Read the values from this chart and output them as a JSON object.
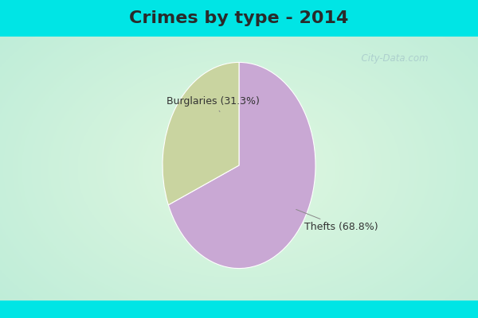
{
  "title": "Crimes by type - 2014",
  "slices": [
    {
      "label": "Thefts (68.8%)",
      "value": 68.8,
      "color": "#C9A8D4"
    },
    {
      "label": "Burglaries (31.3%)",
      "value": 31.3,
      "color": "#C9D4A0"
    }
  ],
  "bg_cyan": "#00E5E5",
  "bg_green_light": "#D8EED8",
  "title_fontsize": 16,
  "title_fontweight": "bold",
  "title_color": "#2a2a2a",
  "label_fontsize": 9,
  "label_color": "#333333",
  "watermark": "  City-Data.com",
  "watermark_color": "#aacccc",
  "top_bar_height": 0.115,
  "bot_bar_height": 0.055
}
